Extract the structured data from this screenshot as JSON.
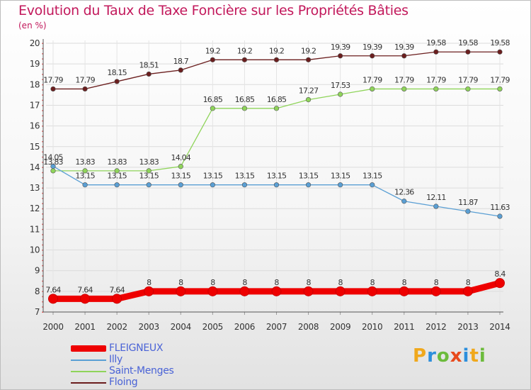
{
  "title": "Evolution du Taux de Taxe Foncière sur les Propriétés Bâties",
  "unit_label": "(en %)",
  "logo": {
    "text": "Proxiti",
    "letters": [
      "P",
      "r",
      "o",
      "x",
      "i",
      "t",
      "i"
    ],
    "colors": [
      "#f0a81c",
      "#2d8fdc",
      "#6cbb3c",
      "#e84a1c",
      "#2d8fdc",
      "#f0a81c",
      "#6cbb3c"
    ]
  },
  "chart_data": {
    "type": "line",
    "title": "Evolution du Taux de Taxe Foncière sur les Propriétés Bâties",
    "ylabel": "(en %)",
    "xlabel": "",
    "ylim": [
      7,
      20
    ],
    "yticks": [
      7,
      8,
      9,
      10,
      11,
      12,
      13,
      14,
      15,
      16,
      17,
      18,
      19,
      20
    ],
    "categories": [
      "2000",
      "2001",
      "2002",
      "2003",
      "2004",
      "2005",
      "2006",
      "2007",
      "2008",
      "2009",
      "2010",
      "2011",
      "2012",
      "2013",
      "2014"
    ],
    "series": [
      {
        "name": "Floing",
        "color": "#6b1e1e",
        "values": [
          17.79,
          17.79,
          18.15,
          18.51,
          18.7,
          19.2,
          19.2,
          19.2,
          19.2,
          19.39,
          19.39,
          19.39,
          19.58,
          19.58,
          19.58
        ],
        "labels": [
          "17.79",
          "17.79",
          "18.15",
          "18.51",
          "18.7",
          "19.2",
          "19.2",
          "19.2",
          "19.2",
          "19.39",
          "19.39",
          "19.39",
          "19.58",
          "19.58",
          "19.58"
        ]
      },
      {
        "name": "Saint-Menges",
        "color": "#8fd45a",
        "values": [
          13.83,
          13.83,
          13.83,
          13.83,
          14.04,
          16.85,
          16.85,
          16.85,
          17.27,
          17.53,
          17.79,
          17.79,
          17.79,
          17.79,
          17.79
        ],
        "labels": [
          "13.83",
          "13.83",
          "13.83",
          "13.83",
          "14.04",
          "16.85",
          "16.85",
          "16.85",
          "17.27",
          "17.53",
          "17.79",
          "17.79",
          "17.79",
          "17.79",
          "17.79"
        ]
      },
      {
        "name": "Illy",
        "color": "#5a9fd4",
        "values": [
          14.05,
          13.15,
          13.15,
          13.15,
          13.15,
          13.15,
          13.15,
          13.15,
          13.15,
          13.15,
          13.15,
          12.36,
          12.11,
          11.87,
          11.63
        ],
        "labels": [
          "14.05",
          "13.15",
          "13.15",
          "13.15",
          "13.15",
          "13.15",
          "13.15",
          "13.15",
          "13.15",
          "13.15",
          "13.15",
          "12.36",
          "12.11",
          "11.87",
          "11.63"
        ]
      },
      {
        "name": "FLEIGNEUX",
        "color": "#ee0000",
        "values": [
          7.64,
          7.64,
          7.64,
          8,
          8,
          8,
          8,
          8,
          8,
          8,
          8,
          8,
          8,
          8,
          8.4
        ],
        "labels": [
          "7.64",
          "7.64",
          "7.64",
          "8",
          "8",
          "8",
          "8",
          "8",
          "8",
          "8",
          "8",
          "8",
          "8",
          "8",
          "8.4"
        ]
      }
    ],
    "legend": [
      "FLEIGNEUX",
      "Illy",
      "Saint-Menges",
      "Floing"
    ],
    "legend_position": "bottom-left"
  }
}
